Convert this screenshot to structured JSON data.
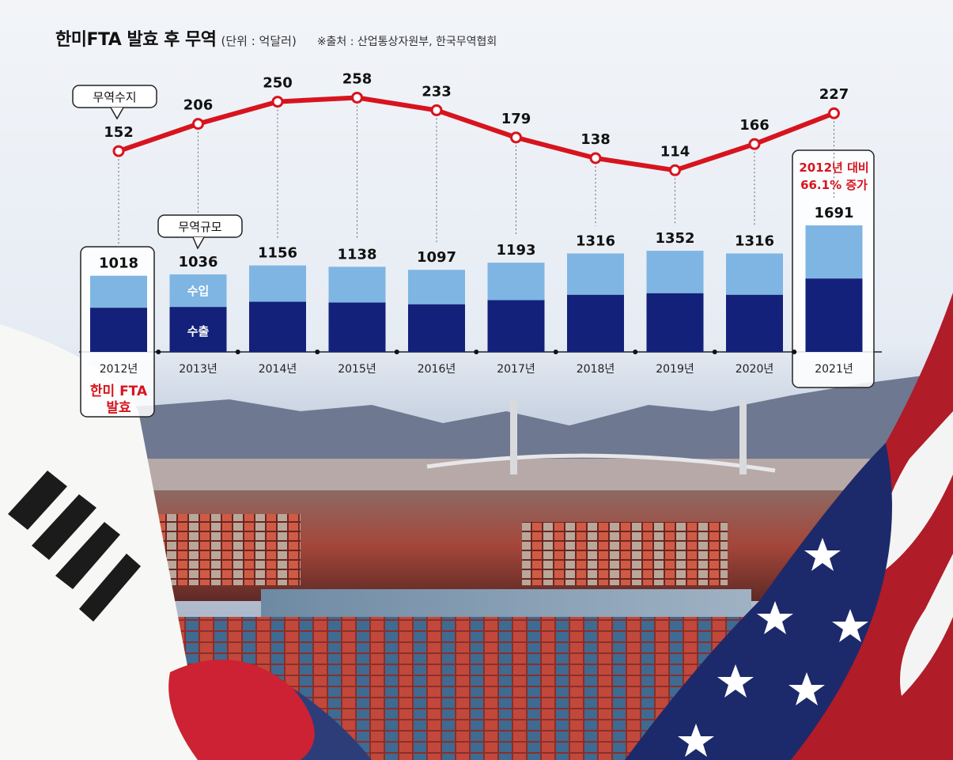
{
  "header": {
    "title": "한미FTA 발효 후 무역",
    "unit": "(단위 : 억달러)",
    "source": "※출처 : 산업통상자원부, 한국무역협회"
  },
  "callouts": {
    "trade_balance": "무역수지",
    "trade_volume": "무역규모",
    "import": "수입",
    "export": "수출",
    "fta_line1": "한미 FTA",
    "fta_line2": "발효",
    "increase_line1": "2012년 대비",
    "increase_line2": "66.1% 증가"
  },
  "colors": {
    "line": "#d7141e",
    "import": "#7fb5e2",
    "export": "#13217a",
    "accent_text": "#d7141e"
  },
  "chart_data": {
    "type": "bar",
    "categories": [
      "2012년",
      "2013년",
      "2014년",
      "2015년",
      "2016년",
      "2017년",
      "2018년",
      "2019년",
      "2020년",
      "2021년"
    ],
    "series": [
      {
        "name": "무역규모",
        "values": [
          1018,
          1036,
          1156,
          1138,
          1097,
          1193,
          1316,
          1352,
          1316,
          1691
        ]
      },
      {
        "name": "무역수지",
        "type": "line",
        "values": [
          152,
          206,
          250,
          258,
          233,
          179,
          138,
          114,
          166,
          227
        ]
      }
    ],
    "stack_split": {
      "note_names": [
        "수출",
        "수입"
      ]
    }
  }
}
